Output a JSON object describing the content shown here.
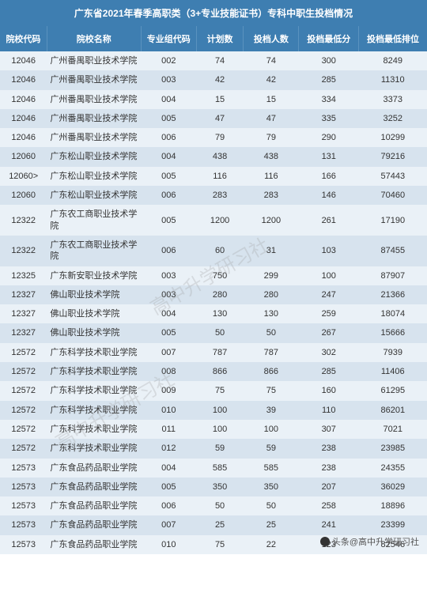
{
  "title": "广东省2021年春季高职类（3+专业技能证书）专科中职生投档情况",
  "columns": [
    "院校代码",
    "院校名称",
    "专业组代码",
    "计划数",
    "投档人数",
    "投档最低分",
    "投档最低排位"
  ],
  "watermark": "高中升学研习社",
  "footer": "头条@高中升学研习社",
  "rows": [
    [
      "12046",
      "广州番禺职业技术学院",
      "002",
      "74",
      "74",
      "300",
      "8249"
    ],
    [
      "12046",
      "广州番禺职业技术学院",
      "003",
      "42",
      "42",
      "285",
      "11310"
    ],
    [
      "12046",
      "广州番禺职业技术学院",
      "004",
      "15",
      "15",
      "334",
      "3373"
    ],
    [
      "12046",
      "广州番禺职业技术学院",
      "005",
      "47",
      "47",
      "335",
      "3252"
    ],
    [
      "12046",
      "广州番禺职业技术学院",
      "006",
      "79",
      "79",
      "290",
      "10299"
    ],
    [
      "12060",
      "广东松山职业技术学院",
      "004",
      "438",
      "438",
      "131",
      "79216"
    ],
    [
      "12060>",
      "广东松山职业技术学院",
      "005",
      "116",
      "116",
      "166",
      "57443"
    ],
    [
      "12060",
      "广东松山职业技术学院",
      "006",
      "283",
      "283",
      "146",
      "70460"
    ],
    [
      "12322",
      "广东农工商职业技术学院",
      "005",
      "1200",
      "1200",
      "261",
      "17190"
    ],
    [
      "12322",
      "广东农工商职业技术学院",
      "006",
      "60",
      "31",
      "103",
      "87455"
    ],
    [
      "12325",
      "广东新安职业技术学院",
      "003",
      "750",
      "299",
      "100",
      "87907"
    ],
    [
      "12327",
      "佛山职业技术学院",
      "003",
      "280",
      "280",
      "247",
      "21366"
    ],
    [
      "12327",
      "佛山职业技术学院",
      "004",
      "130",
      "130",
      "259",
      "18074"
    ],
    [
      "12327",
      "佛山职业技术学院",
      "005",
      "50",
      "50",
      "267",
      "15666"
    ],
    [
      "12572",
      "广东科学技术职业学院",
      "007",
      "787",
      "787",
      "302",
      "7939"
    ],
    [
      "12572",
      "广东科学技术职业学院",
      "008",
      "866",
      "866",
      "285",
      "11406"
    ],
    [
      "12572",
      "广东科学技术职业学院",
      "009",
      "75",
      "75",
      "160",
      "61295"
    ],
    [
      "12572",
      "广东科学技术职业学院",
      "010",
      "100",
      "39",
      "110",
      "86201"
    ],
    [
      "12572",
      "广东科学技术职业学院",
      "011",
      "100",
      "100",
      "307",
      "7021"
    ],
    [
      "12572",
      "广东科学技术职业学院",
      "012",
      "59",
      "59",
      "238",
      "23985"
    ],
    [
      "12573",
      "广东食品药品职业学院",
      "004",
      "585",
      "585",
      "238",
      "24355"
    ],
    [
      "12573",
      "广东食品药品职业学院",
      "005",
      "350",
      "350",
      "207",
      "36029"
    ],
    [
      "12573",
      "广东食品药品职业学院",
      "006",
      "50",
      "50",
      "258",
      "18896"
    ],
    [
      "12573",
      "广东食品药品职业学院",
      "007",
      "25",
      "25",
      "241",
      "23399"
    ],
    [
      "12573",
      "广东食品药品职业学院",
      "010",
      "75",
      "22",
      "123",
      "82546"
    ]
  ]
}
